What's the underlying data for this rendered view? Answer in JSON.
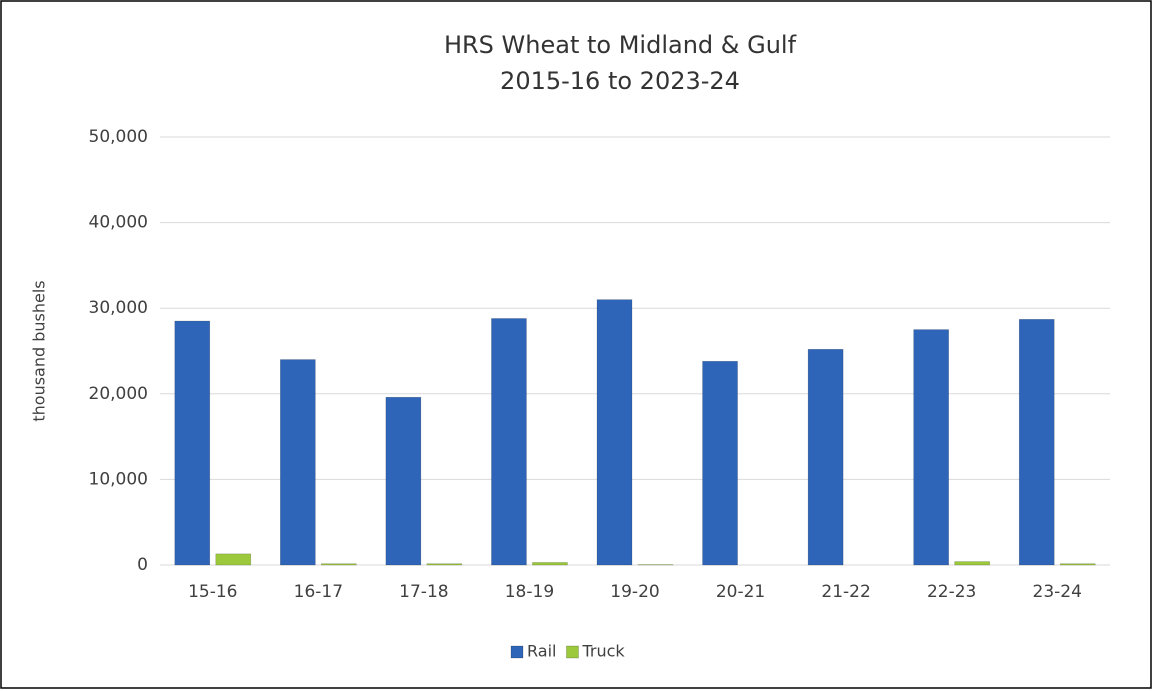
{
  "chart_data": {
    "type": "bar",
    "title": [
      "HRS Wheat to Midland & Gulf",
      "2015-16 to 2023-24"
    ],
    "y_label": "thousand bushels",
    "categories": [
      "15-16",
      "16-17",
      "17-18",
      "18-19",
      "19-20",
      "20-21",
      "21-22",
      "22-23",
      "23-24"
    ],
    "series": [
      {
        "name": "Rail",
        "color": "#2f65b8",
        "values": [
          28500,
          24000,
          19600,
          28800,
          31000,
          23800,
          25200,
          27500,
          28700
        ]
      },
      {
        "name": "Truck",
        "color": "#9cc83c",
        "values": [
          1300,
          150,
          150,
          300,
          50,
          0,
          0,
          400,
          150
        ]
      }
    ],
    "ylim": [
      0,
      50000
    ],
    "yticks": [
      0,
      {
        "value": 10000,
        "label": "10,000"
      },
      {
        "value": 20000,
        "label": "20,000"
      },
      {
        "value": 30000,
        "label": "30,000"
      },
      {
        "value": 40000,
        "label": "40,000"
      },
      {
        "value": 50000,
        "label": "50,000"
      }
    ],
    "grid": true,
    "legend": "bottom"
  }
}
